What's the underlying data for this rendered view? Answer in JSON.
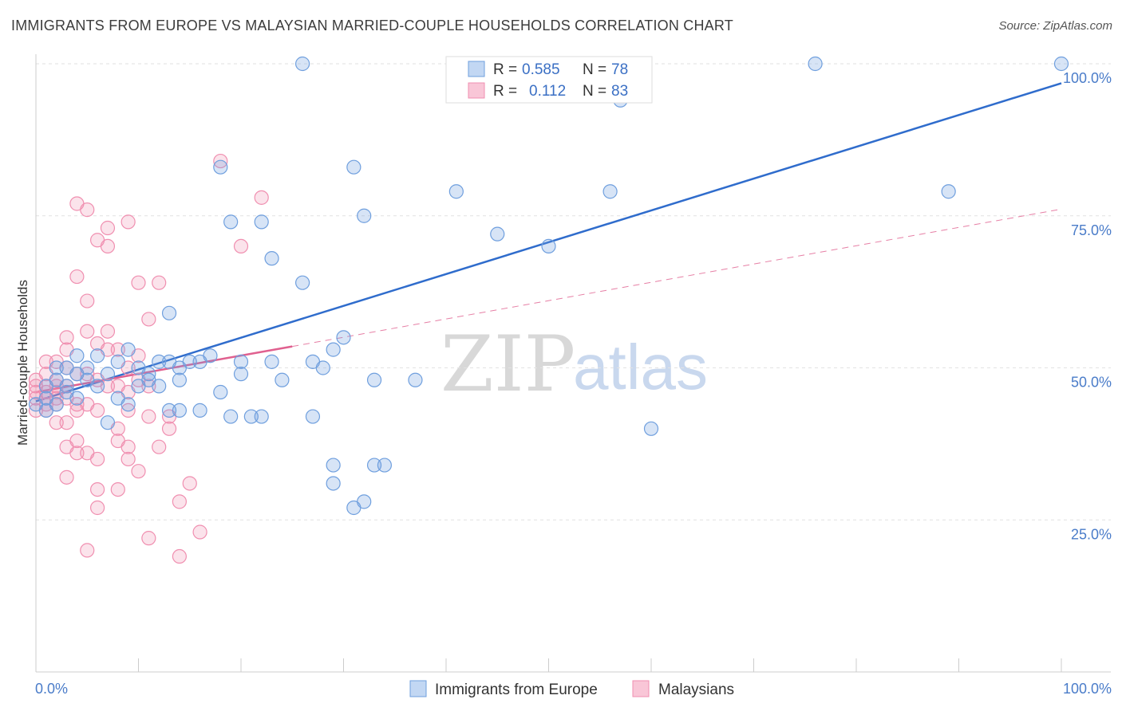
{
  "title": "IMMIGRANTS FROM EUROPE VS MALAYSIAN MARRIED-COUPLE HOUSEHOLDS CORRELATION CHART",
  "source": "Source: ZipAtlas.com",
  "colors": {
    "blue": "#6f9fde",
    "blue_line": "#2f6ccc",
    "pink": "#f08fb0",
    "pink_line": "#e0608f"
  },
  "legend": {
    "r_label": "R =",
    "n_label": "N =",
    "rows": [
      {
        "r": "0.585",
        "n": "78"
      },
      {
        "r": "0.112",
        "n": "83"
      }
    ]
  },
  "chart_data": {
    "type": "scatter",
    "title": "IMMIGRANTS FROM EUROPE VS MALAYSIAN MARRIED-COUPLE HOUSEHOLDS CORRELATION CHART",
    "xlabel": "",
    "ylabel": "Married-couple Households",
    "xlim": [
      0,
      100
    ],
    "ylim": [
      0,
      100
    ],
    "x_tick_labels": [
      "0.0%",
      "100.0%"
    ],
    "y_tick_labels": [
      "25.0%",
      "50.0%",
      "75.0%",
      "100.0%"
    ],
    "y_ticks": [
      25,
      50,
      75,
      100
    ],
    "grid": true,
    "legend_position": "top-center",
    "series": [
      {
        "name": "Immigrants from Europe",
        "r": 0.585,
        "n": 78,
        "trend": {
          "x": [
            0,
            100
          ],
          "y": [
            44.5,
            96.8
          ]
        },
        "points": [
          [
            26,
            100
          ],
          [
            47,
            100
          ],
          [
            76,
            100
          ],
          [
            100,
            100
          ],
          [
            57,
            94
          ],
          [
            18,
            83
          ],
          [
            31,
            83
          ],
          [
            41,
            79
          ],
          [
            56,
            79
          ],
          [
            89,
            79
          ],
          [
            19,
            74
          ],
          [
            22,
            74
          ],
          [
            32,
            75
          ],
          [
            45,
            72
          ],
          [
            50,
            70
          ],
          [
            23,
            68
          ],
          [
            26,
            64
          ],
          [
            13,
            59
          ],
          [
            30,
            55
          ],
          [
            29,
            53
          ],
          [
            2,
            50
          ],
          [
            4,
            52
          ],
          [
            6,
            52
          ],
          [
            8,
            51
          ],
          [
            9,
            53
          ],
          [
            12,
            51
          ],
          [
            13,
            51
          ],
          [
            15,
            51
          ],
          [
            16,
            51
          ],
          [
            17,
            52
          ],
          [
            3,
            50
          ],
          [
            5,
            50
          ],
          [
            7,
            49
          ],
          [
            10,
            50
          ],
          [
            11,
            49
          ],
          [
            14,
            50
          ],
          [
            20,
            51
          ],
          [
            23,
            51
          ],
          [
            27,
            51
          ],
          [
            28,
            50
          ],
          [
            1,
            47
          ],
          [
            2,
            48
          ],
          [
            3,
            47
          ],
          [
            4,
            49
          ],
          [
            5,
            48
          ],
          [
            6,
            47
          ],
          [
            8,
            45
          ],
          [
            10,
            47
          ],
          [
            11,
            48
          ],
          [
            12,
            47
          ],
          [
            14,
            48
          ],
          [
            18,
            46
          ],
          [
            20,
            49
          ],
          [
            24,
            48
          ],
          [
            33,
            48
          ],
          [
            37,
            48
          ],
          [
            14,
            43
          ],
          [
            16,
            43
          ],
          [
            7,
            41
          ],
          [
            9,
            44
          ],
          [
            13,
            43
          ],
          [
            19,
            42
          ],
          [
            21,
            42
          ],
          [
            22,
            42
          ],
          [
            27,
            42
          ],
          [
            60,
            40
          ],
          [
            29,
            34
          ],
          [
            29,
            31
          ],
          [
            33,
            34
          ],
          [
            34,
            34
          ],
          [
            32,
            28
          ],
          [
            31,
            27
          ],
          [
            1,
            45
          ],
          [
            0,
            44
          ],
          [
            2,
            44
          ],
          [
            3,
            46
          ],
          [
            4,
            45
          ],
          [
            1,
            43
          ]
        ]
      },
      {
        "name": "Malaysians",
        "r": 0.112,
        "n": 83,
        "trend": {
          "x": [
            0,
            100
          ],
          "y": [
            46,
            76.1
          ]
        },
        "trend_solid_until": 25,
        "points": [
          [
            18,
            84
          ],
          [
            22,
            78
          ],
          [
            4,
            77
          ],
          [
            5,
            76
          ],
          [
            9,
            74
          ],
          [
            7,
            73
          ],
          [
            6,
            71
          ],
          [
            7,
            70
          ],
          [
            20,
            70
          ],
          [
            4,
            65
          ],
          [
            10,
            64
          ],
          [
            12,
            64
          ],
          [
            5,
            61
          ],
          [
            11,
            58
          ],
          [
            5,
            56
          ],
          [
            7,
            56
          ],
          [
            3,
            55
          ],
          [
            6,
            54
          ],
          [
            3,
            53
          ],
          [
            7,
            53
          ],
          [
            2,
            51
          ],
          [
            1,
            51
          ],
          [
            3,
            50
          ],
          [
            4,
            49
          ],
          [
            5,
            49
          ],
          [
            1,
            49
          ],
          [
            0,
            48
          ],
          [
            2,
            48
          ],
          [
            1,
            47
          ],
          [
            2,
            47
          ],
          [
            3,
            47
          ],
          [
            0,
            46
          ],
          [
            1,
            46
          ],
          [
            2,
            45
          ],
          [
            3,
            45
          ],
          [
            4,
            44
          ],
          [
            5,
            44
          ],
          [
            6,
            43
          ],
          [
            4,
            43
          ],
          [
            0,
            45
          ],
          [
            1,
            44
          ],
          [
            2,
            46
          ],
          [
            6,
            48
          ],
          [
            8,
            47
          ],
          [
            9,
            46
          ],
          [
            10,
            48
          ],
          [
            11,
            47
          ],
          [
            8,
            53
          ],
          [
            9,
            50
          ],
          [
            10,
            52
          ],
          [
            7,
            47
          ],
          [
            9,
            43
          ],
          [
            11,
            42
          ],
          [
            13,
            42
          ],
          [
            13,
            40
          ],
          [
            8,
            40
          ],
          [
            8,
            38
          ],
          [
            9,
            37
          ],
          [
            12,
            37
          ],
          [
            3,
            37
          ],
          [
            4,
            38
          ],
          [
            4,
            36
          ],
          [
            5,
            36
          ],
          [
            6,
            35
          ],
          [
            9,
            35
          ],
          [
            1,
            43
          ],
          [
            0,
            43
          ],
          [
            2,
            41
          ],
          [
            3,
            41
          ],
          [
            10,
            33
          ],
          [
            3,
            32
          ],
          [
            6,
            30
          ],
          [
            8,
            30
          ],
          [
            15,
            31
          ],
          [
            14,
            28
          ],
          [
            6,
            27
          ],
          [
            16,
            23
          ],
          [
            11,
            22
          ],
          [
            5,
            20
          ],
          [
            14,
            19
          ],
          [
            1,
            45
          ],
          [
            2,
            44
          ],
          [
            0,
            47
          ]
        ]
      }
    ]
  },
  "bottom_legend": [
    "Immigrants from Europe",
    "Malaysians"
  ]
}
